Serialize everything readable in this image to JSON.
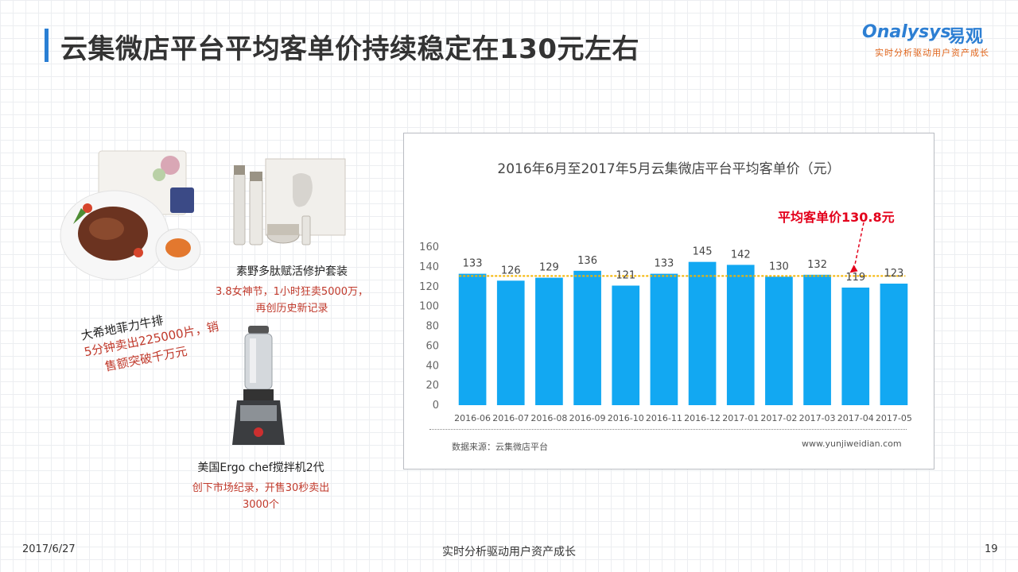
{
  "header": {
    "title": "云集微店平台平均客单价持续稳定在130元左右"
  },
  "logo": {
    "brand": "Onalysys",
    "brand_cn": "易观",
    "tagline": "实时分析驱动用户资产成长"
  },
  "products": [
    {
      "name": "素野多肽赋活修护套装",
      "desc_lines": [
        "3.8女神节，1小时狂卖5000万，",
        "再创历史新记录"
      ]
    },
    {
      "name": "大希地菲力牛排",
      "desc_lines": [
        "5分钟卖出225000片，销",
        "售额突破千万元"
      ]
    },
    {
      "name": "美国Ergo chef搅拌机2代",
      "desc_lines": [
        "创下市场纪录，开售30秒卖出",
        "3000个"
      ]
    }
  ],
  "chart_data": {
    "type": "bar",
    "title": "2016年6月至2017年5月云集微店平台平均客单价（元）",
    "categories": [
      "2016-06",
      "2016-07",
      "2016-08",
      "2016-09",
      "2016-10",
      "2016-11",
      "2016-12",
      "2017-01",
      "2017-02",
      "2017-03",
      "2017-04",
      "2017-05"
    ],
    "values": [
      133,
      126,
      129,
      136,
      121,
      133,
      145,
      142,
      130,
      132,
      119,
      123
    ],
    "average": 130.8,
    "annotation": "平均客单价130.8元",
    "ylim": [
      0,
      160
    ],
    "yticks": [
      0,
      20,
      40,
      60,
      80,
      100,
      120,
      140,
      160
    ],
    "xlabel": "",
    "ylabel": "",
    "grid": false,
    "bar_color": "#12a8f2",
    "avg_line_color": "#f5b400",
    "source": "数据来源：云集微店平台",
    "url": "www.yunjiweidian.com"
  },
  "footer": {
    "date": "2017/6/27",
    "center": "实时分析驱动用户资产成长",
    "page": "19"
  }
}
